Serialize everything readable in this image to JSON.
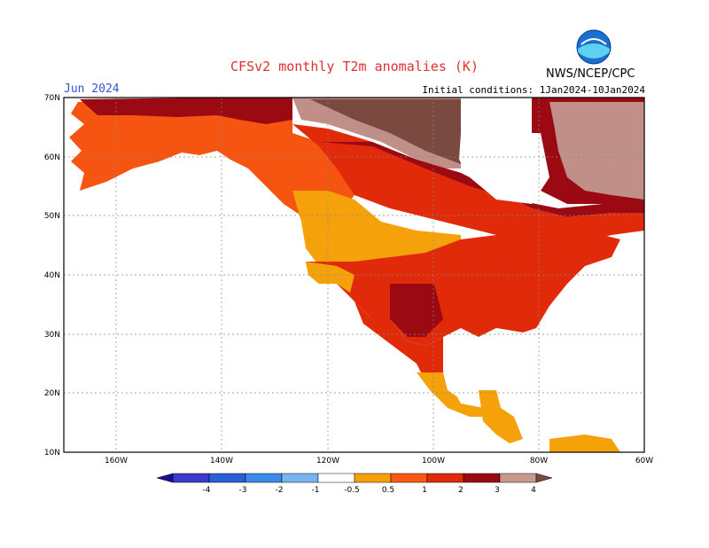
{
  "title": "CFSv2 monthly T2m anomalies (K)",
  "agency": "NWS/NCEP/CPC",
  "month": "Jun 2024",
  "initial_conditions": "Initial conditions: 1Jan2024-10Jan2024",
  "lat_labels": [
    "70N",
    "60N",
    "50N",
    "40N",
    "30N",
    "20N",
    "10N"
  ],
  "lon_labels": [
    "160W",
    "140W",
    "120W",
    "100W",
    "80W",
    "60W"
  ],
  "colorbar": {
    "labels": [
      "-4",
      "-3",
      "-2",
      "-1",
      "-0.5",
      "0.5",
      "1",
      "2",
      "3",
      "4"
    ],
    "colors": [
      "#1f0f8f",
      "#3a3acc",
      "#2a5fd8",
      "#3a8ae8",
      "#7ab4f0",
      "#ffffff",
      "#f5a20a",
      "#f75a10",
      "#e02a0a",
      "#9b0a12",
      "#c79a90",
      "#7a4a40"
    ]
  },
  "anomaly_colors": {
    "level_0_5_1": "#f5a20a",
    "level_1_2": "#f55510",
    "level_2_3": "#e02a0a",
    "level_3_4": "#9b0a12",
    "level_4_plus": "#c09088",
    "level_top": "#7a4a40"
  }
}
